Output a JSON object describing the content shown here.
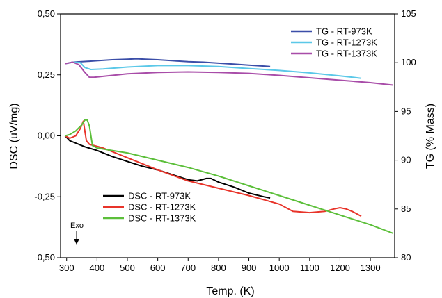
{
  "chart_data": {
    "type": "line",
    "xlabel": "Temp. (K)",
    "ylabel_left": "DSC (uV/mg)",
    "ylabel_right": "TG (% Mass)",
    "xlim": [
      280,
      1380
    ],
    "ylim_left": [
      -0.5,
      0.5
    ],
    "ylim_right": [
      80,
      105
    ],
    "x_ticks": [
      "300",
      "400",
      "500",
      "600",
      "700",
      "800",
      "900",
      "1000",
      "1100",
      "1200",
      "1300"
    ],
    "y_left_ticks": [
      "0,50",
      "0,25",
      "0,00",
      "-0,25",
      "-0,50"
    ],
    "y_right_ticks": [
      "105",
      "100",
      "95",
      "90",
      "85",
      "80"
    ],
    "grid": false,
    "annotation": {
      "text": "Exo",
      "arrow": "down"
    },
    "tg_series": [
      {
        "name": "TG - RT-973K",
        "color": "#3b4ea8",
        "axis": "right",
        "x": [
          295,
          320,
          350,
          400,
          450,
          500,
          530,
          560,
          600,
          650,
          700,
          750,
          800,
          850,
          900,
          950,
          970
        ],
        "y": [
          99.9,
          100.05,
          100.1,
          100.2,
          100.3,
          100.35,
          100.4,
          100.35,
          100.3,
          100.2,
          100.1,
          100.05,
          99.95,
          99.85,
          99.75,
          99.65,
          99.6
        ]
      },
      {
        "name": "TG - RT-1273K",
        "color": "#5bc8e8",
        "axis": "right",
        "x": [
          295,
          320,
          345,
          360,
          380,
          420,
          500,
          600,
          700,
          800,
          900,
          1000,
          1100,
          1200,
          1270
        ],
        "y": [
          99.9,
          100.05,
          100.0,
          99.5,
          99.3,
          99.35,
          99.55,
          99.7,
          99.7,
          99.6,
          99.4,
          99.2,
          98.95,
          98.65,
          98.4
        ]
      },
      {
        "name": "TG - RT-1373K",
        "color": "#a84ca8",
        "axis": "right",
        "x": [
          295,
          320,
          340,
          360,
          375,
          390,
          420,
          500,
          600,
          700,
          800,
          900,
          1000,
          1100,
          1200,
          1300,
          1375
        ],
        "y": [
          99.9,
          100.05,
          99.8,
          99.0,
          98.5,
          98.5,
          98.6,
          98.85,
          99.0,
          99.05,
          99.0,
          98.9,
          98.7,
          98.45,
          98.2,
          97.95,
          97.7
        ]
      }
    ],
    "dsc_series": [
      {
        "name": "DSC - RT-973K",
        "color": "#000000",
        "axis": "left",
        "x": [
          295,
          310,
          330,
          360,
          400,
          450,
          500,
          550,
          600,
          650,
          700,
          730,
          760,
          775,
          800,
          850,
          900,
          950,
          970
        ],
        "y": [
          0.0,
          -0.02,
          -0.03,
          -0.045,
          -0.06,
          -0.085,
          -0.105,
          -0.125,
          -0.14,
          -0.16,
          -0.18,
          -0.185,
          -0.175,
          -0.175,
          -0.19,
          -0.21,
          -0.235,
          -0.25,
          -0.255
        ]
      },
      {
        "name": "DSC - RT-1273K",
        "color": "#e8342a",
        "axis": "left",
        "x": [
          295,
          310,
          330,
          345,
          355,
          365,
          375,
          390,
          420,
          500,
          600,
          700,
          800,
          900,
          1000,
          1030,
          1045,
          1100,
          1150,
          1180,
          1200,
          1220,
          1240,
          1270
        ],
        "y": [
          0.0,
          -0.01,
          0.0,
          0.03,
          0.06,
          -0.02,
          -0.035,
          -0.04,
          -0.05,
          -0.09,
          -0.14,
          -0.185,
          -0.215,
          -0.245,
          -0.28,
          -0.3,
          -0.31,
          -0.315,
          -0.31,
          -0.3,
          -0.295,
          -0.3,
          -0.31,
          -0.33
        ]
      },
      {
        "name": "DSC - RT-1373K",
        "color": "#5cbf3a",
        "axis": "left",
        "x": [
          295,
          310,
          330,
          350,
          360,
          368,
          375,
          385,
          400,
          450,
          500,
          600,
          700,
          800,
          900,
          1000,
          1100,
          1200,
          1300,
          1375
        ],
        "y": [
          0.0,
          0.005,
          0.02,
          0.045,
          0.065,
          0.065,
          0.04,
          -0.04,
          -0.05,
          -0.06,
          -0.07,
          -0.1,
          -0.13,
          -0.165,
          -0.205,
          -0.245,
          -0.285,
          -0.325,
          -0.365,
          -0.4
        ]
      }
    ]
  }
}
